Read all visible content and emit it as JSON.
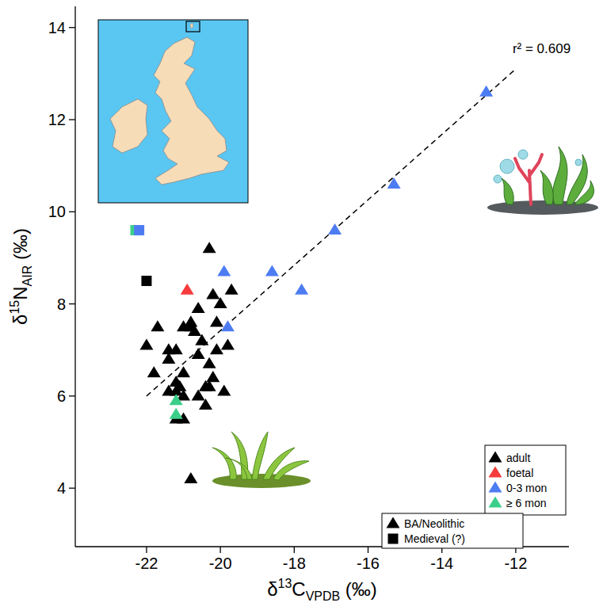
{
  "chart_data": {
    "type": "scatter",
    "x_label": "δ13CVPDB (‰)",
    "y_label": "δ15NAIR (‰)",
    "xlim": [
      -23.93,
      -10.56
    ],
    "ylim": [
      2.73,
      14.46
    ],
    "xticks": [
      -22,
      -20,
      -18,
      -16,
      -14,
      -12
    ],
    "yticks": [
      4,
      6,
      8,
      10,
      12,
      14
    ],
    "grid": false,
    "legend": "bottom-right",
    "series": [
      {
        "name": "adult",
        "color": "#000000",
        "marker": "triangle",
        "x": [
          -20.3,
          -20.2,
          -20.0,
          -19.7,
          -20.6,
          -20.1,
          -20.8,
          -21.0,
          -20.8,
          -21.7,
          -20.7,
          -20.5,
          -22.0,
          -19.8,
          -20.1,
          -21.4,
          -21.2,
          -20.6,
          -21.4,
          -20.3,
          -21.0,
          -21.8,
          -20.2,
          -21.2,
          -21.1,
          -20.4,
          -20.3,
          -21.4,
          -21.2,
          -19.9,
          -21.0,
          -20.6,
          -20.4,
          -21.2,
          -21.0,
          -20.8
        ],
        "values": [
          9.2,
          8.2,
          8.0,
          8.3,
          7.9,
          7.6,
          7.6,
          7.5,
          7.5,
          7.5,
          7.4,
          7.2,
          7.1,
          7.1,
          7.0,
          7.0,
          7.0,
          6.9,
          6.8,
          6.7,
          6.5,
          6.5,
          6.4,
          6.3,
          6.2,
          6.2,
          6.2,
          6.1,
          6.1,
          6.1,
          6.0,
          6.0,
          5.8,
          5.5,
          5.5,
          4.2
        ]
      },
      {
        "name": "foetal",
        "color": "#f53b3b",
        "marker": "triangle",
        "x": [
          -20.9
        ],
        "values": [
          8.3
        ]
      },
      {
        "name": "0-3 mon",
        "color": "#4d7cf2",
        "marker": "triangle",
        "x": [
          -12.8,
          -15.3,
          -16.9,
          -19.9,
          -18.6,
          -17.8,
          -19.8
        ],
        "values": [
          12.6,
          10.6,
          9.6,
          8.7,
          8.7,
          8.3,
          7.5
        ]
      },
      {
        "name": "≥ 6 mon",
        "color": "#3ccf8a",
        "marker": "triangle",
        "x": [
          -21.2,
          -21.2
        ],
        "values": [
          5.9,
          5.6
        ]
      },
      {
        "marker": "square",
        "colors": [
          "#000000",
          "#3ccf8a",
          "#4d7cf2"
        ],
        "x": [
          -22.0,
          -22.3,
          -22.2
        ],
        "values": [
          8.5,
          9.6,
          9.6
        ]
      }
    ],
    "shape_legend": [
      {
        "name": "BA/Neolithic",
        "marker": "triangle"
      },
      {
        "name": "Medieval (?)",
        "marker": "square"
      }
    ],
    "trend_line": {
      "x": [
        -22,
        -12
      ],
      "values": [
        6.0,
        13.1
      ],
      "line_style": "dashed"
    },
    "annotations": [
      {
        "text": "r² = 0.609",
        "x": -11.3,
        "y": 13.45
      }
    ]
  }
}
